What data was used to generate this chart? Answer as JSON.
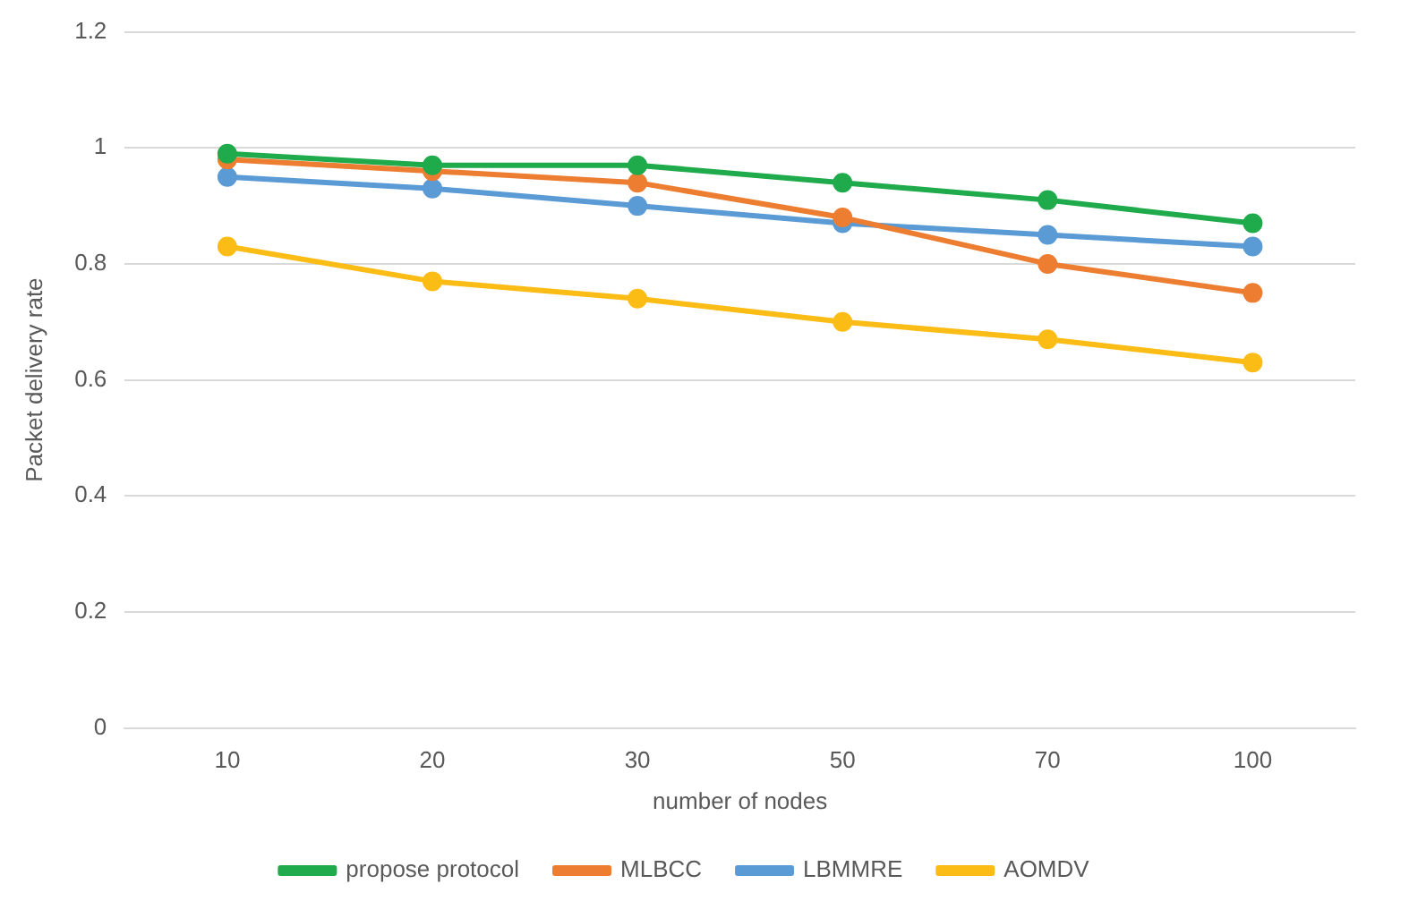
{
  "chart_data": {
    "type": "line",
    "xlabel": "number of nodes",
    "ylabel": "Packet delivery rate",
    "categories": [
      "10",
      "20",
      "30",
      "50",
      "70",
      "100"
    ],
    "series": [
      {
        "name": "propose protocol",
        "color": "#1faa4b",
        "values": [
          0.99,
          0.97,
          0.97,
          0.94,
          0.91,
          0.87
        ]
      },
      {
        "name": "MLBCC",
        "color": "#ed7d31",
        "values": [
          0.98,
          0.96,
          0.94,
          0.88,
          0.8,
          0.75
        ]
      },
      {
        "name": "LBMMRE",
        "color": "#5b9bd5",
        "values": [
          0.95,
          0.93,
          0.9,
          0.87,
          0.85,
          0.83
        ]
      },
      {
        "name": "AOMDV",
        "color": "#fbbc15",
        "values": [
          0.83,
          0.77,
          0.74,
          0.7,
          0.67,
          0.63
        ]
      }
    ],
    "ylim": [
      0,
      1.2
    ],
    "yticks": [
      0,
      0.2,
      0.4,
      0.6,
      0.8,
      1,
      1.2
    ],
    "grid": "y",
    "legend": "bottom",
    "marker": "circle",
    "line_style": "solid"
  }
}
